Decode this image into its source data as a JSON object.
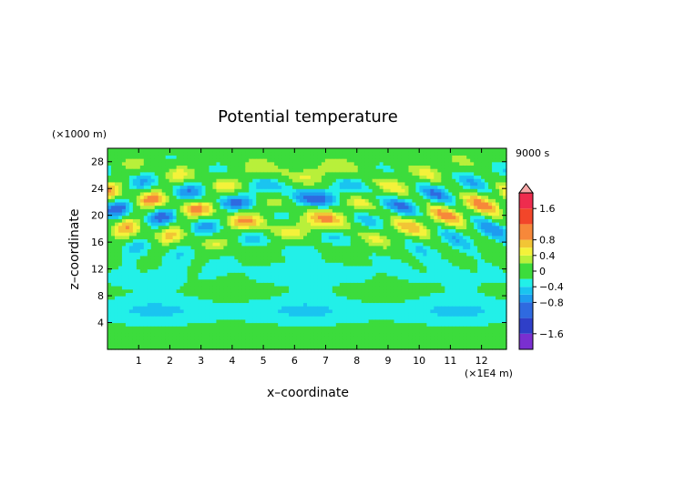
{
  "chart_data": {
    "type": "heatmap",
    "title": "Potential temperature",
    "xlabel": "x–coordinate",
    "ylabel": "z–coordinate",
    "x_unit": "(×1E4 m)",
    "y_unit": "(×1000 m)",
    "time_label": "9000 s",
    "xlim": [
      0,
      12.8
    ],
    "ylim": [
      0,
      30
    ],
    "x_ticks": [
      1,
      2,
      3,
      4,
      5,
      6,
      7,
      8,
      9,
      10,
      11,
      12
    ],
    "y_ticks": [
      4,
      8,
      12,
      16,
      20,
      24,
      28
    ],
    "colorbar": {
      "range": [
        -2.0,
        2.0
      ],
      "tick_values": [
        1.6,
        0.8,
        0.4,
        0,
        -0.4,
        -0.8,
        -1.6
      ],
      "tick_labels": [
        "1.6",
        "0.8",
        "0.4",
        "0",
        "−0.4",
        "−0.8",
        "−1.6"
      ],
      "levels": [
        -2.0,
        -1.6,
        -1.2,
        -0.8,
        -0.6,
        -0.4,
        -0.2,
        0,
        0.2,
        0.4,
        0.6,
        0.8,
        1.2,
        1.6,
        2.0
      ],
      "colors": [
        "#7a2fd0",
        "#2f3fc8",
        "#2f6ae0",
        "#1e9cf0",
        "#1ac4f0",
        "#22f0e8",
        "#3cdc3c",
        "#3cdc3c",
        "#b8f03a",
        "#f4f23a",
        "#f2c535",
        "#f7883a",
        "#f2462a",
        "#ee2c4e"
      ],
      "over_color": "#f7a8a8"
    },
    "field_description_values": {
      "background": 0,
      "upper_band_amplitude": 1.0,
      "lower_band_amplitude": 0.3
    }
  }
}
